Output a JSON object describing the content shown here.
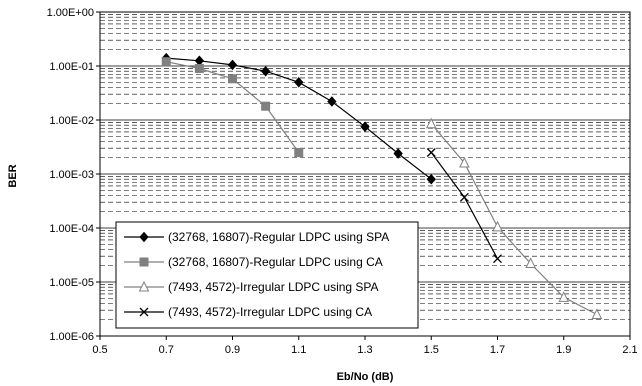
{
  "chart_data": {
    "type": "line",
    "xlabel": "Eb/No (dB)",
    "ylabel": "BER",
    "xlim": [
      0.5,
      2.1
    ],
    "ylim_log10": [
      -6,
      0
    ],
    "y_scale": "log",
    "x_ticks": [
      "0.5",
      "0.7",
      "0.9",
      "1.1",
      "1.3",
      "1.5",
      "1.7",
      "1.9",
      "2.1"
    ],
    "y_ticks": [
      "1.00E-06",
      "1.00E-05",
      "1.00E-04",
      "1.00E-03",
      "1.00E-02",
      "1.00E-01",
      "1.00E+00"
    ],
    "grid": "major and minor horizontal dashed",
    "legend_position": "bottom-left",
    "series": [
      {
        "name": "(32768, 16807)-Regular LDPC using SPA",
        "color": "#000000",
        "marker": "diamond-filled",
        "x": [
          0.7,
          0.8,
          0.9,
          1.0,
          1.1,
          1.2,
          1.3,
          1.4,
          1.5
        ],
        "y": [
          0.14,
          0.125,
          0.105,
          0.08,
          0.05,
          0.022,
          0.0075,
          0.0024,
          0.0008
        ]
      },
      {
        "name": "(32768, 16807)-Regular LDPC using CA",
        "color": "#808080",
        "marker": "square-filled",
        "x": [
          0.7,
          0.8,
          0.9,
          1.0,
          1.1
        ],
        "y": [
          0.12,
          0.09,
          0.058,
          0.018,
          0.0025
        ]
      },
      {
        "name": "(7493, 4572)-Irregular LDPC using SPA",
        "color": "#808080",
        "marker": "triangle-open",
        "x": [
          1.5,
          1.6,
          1.7,
          1.8,
          1.9,
          2.0
        ],
        "y": [
          0.0085,
          0.0016,
          0.000105,
          2.2e-05,
          5.2e-06,
          2.5e-06
        ]
      },
      {
        "name": "(7493, 4572)-Irregular LDPC using CA",
        "color": "#000000",
        "marker": "x",
        "x": [
          1.5,
          1.6,
          1.7
        ],
        "y": [
          0.0025,
          0.00037,
          2.7e-05
        ]
      }
    ]
  }
}
